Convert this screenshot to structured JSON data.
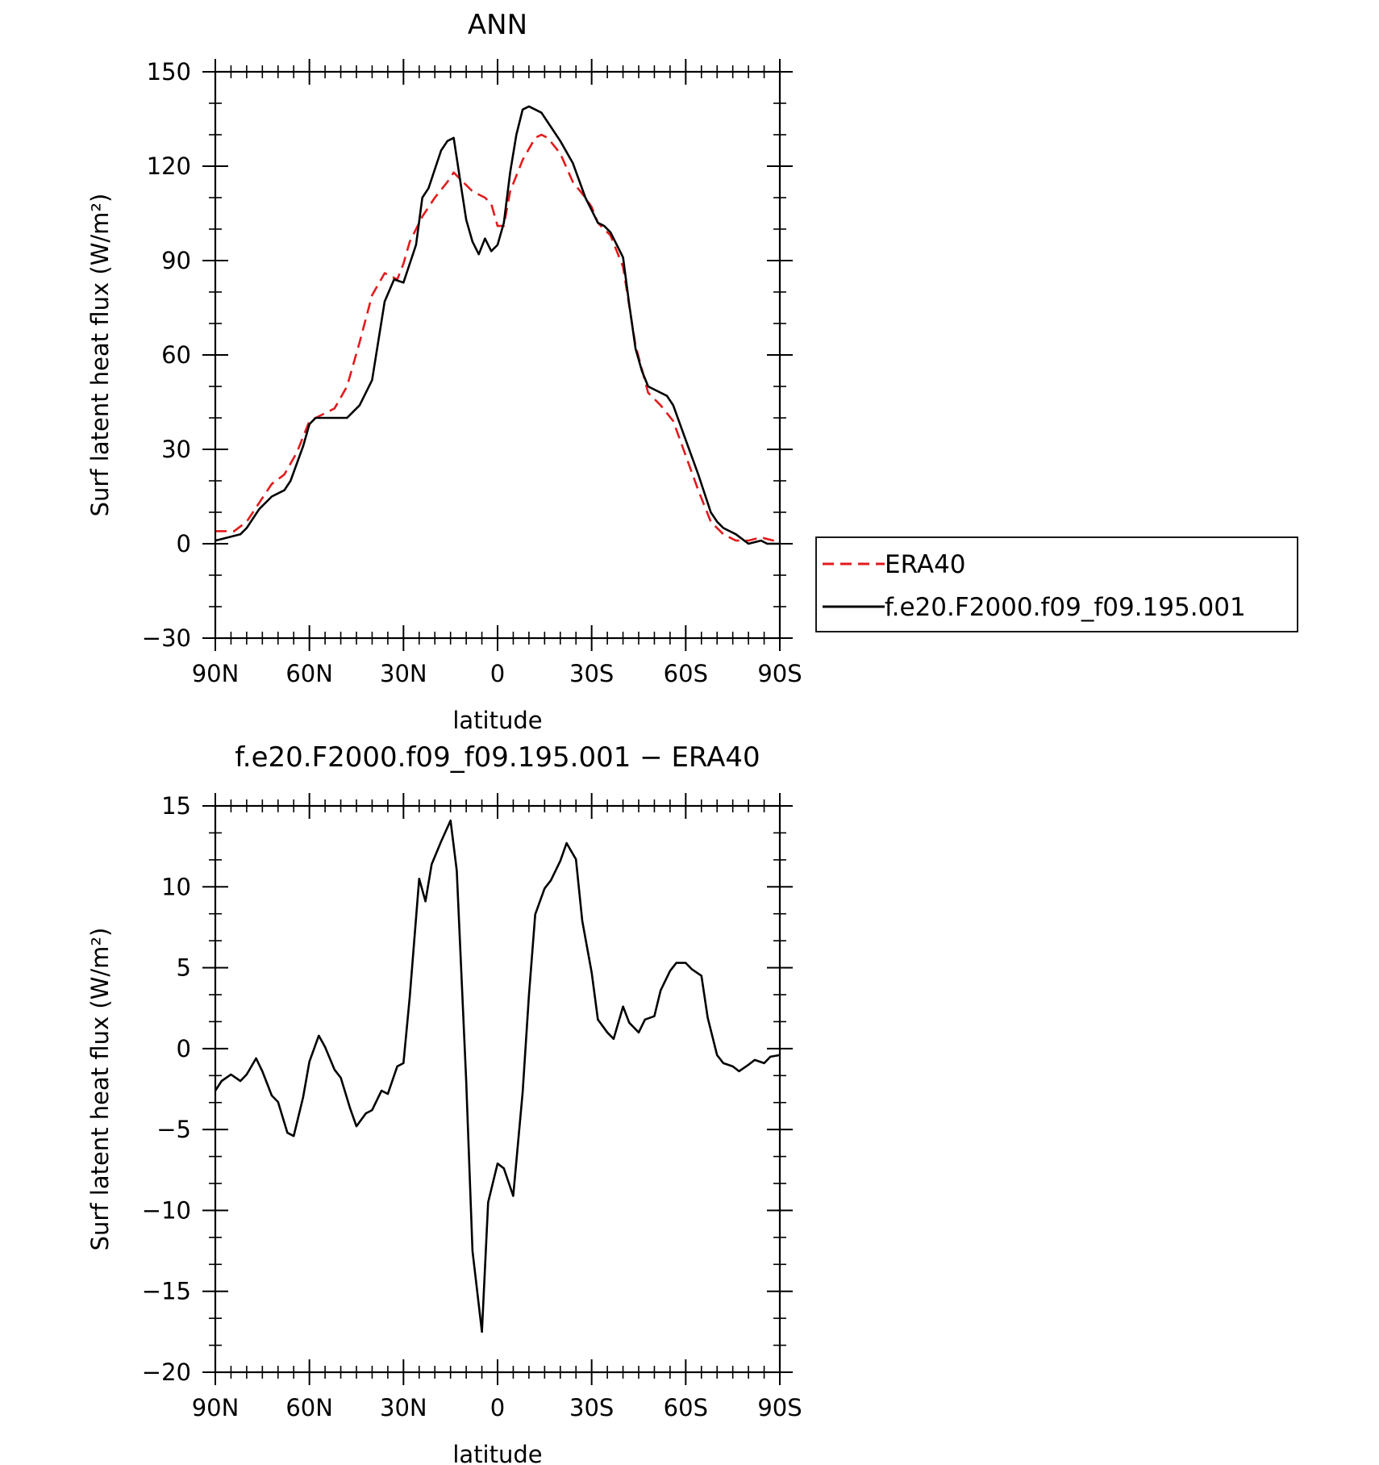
{
  "chart_data": [
    {
      "type": "line",
      "title": "ANN",
      "xlabel": "latitude",
      "ylabel": "Surf latent heat flux (W/m²)",
      "xlim": [
        90,
        -90
      ],
      "ylim": [
        -30,
        150
      ],
      "xticks": [
        90,
        60,
        30,
        0,
        -30,
        -60,
        -90
      ],
      "xtick_labels": [
        "90N",
        "60N",
        "30N",
        "0",
        "30S",
        "60S",
        "90S"
      ],
      "yticks": [
        -30,
        0,
        30,
        60,
        90,
        120,
        150
      ],
      "ytick_labels": [
        "−30",
        "0",
        "30",
        "60",
        "90",
        "120",
        "150"
      ],
      "grid": false,
      "legend": "outside-right",
      "series": [
        {
          "name": "ERA40",
          "color": "#e31a1c",
          "dash": "dashed",
          "x": [
            90,
            84,
            80,
            76,
            72,
            68,
            64,
            60,
            56,
            52,
            48,
            44,
            40,
            36,
            32,
            30,
            28,
            24,
            20,
            16,
            14,
            12,
            8,
            4,
            2,
            0,
            -2,
            -4,
            -8,
            -12,
            -14,
            -16,
            -20,
            -24,
            -28,
            -30,
            -32,
            -36,
            -40,
            -44,
            -48,
            -52,
            -56,
            -60,
            -64,
            -68,
            -72,
            -76,
            -80,
            -84,
            -88,
            -90
          ],
          "values": [
            4,
            4,
            7,
            13,
            19,
            22,
            29,
            39,
            41,
            43,
            50,
            64,
            79,
            86,
            84,
            89,
            96,
            104,
            110,
            115,
            118,
            116,
            112,
            110,
            108,
            101,
            101,
            112,
            122,
            129,
            130,
            129,
            124,
            115,
            110,
            107,
            102,
            98,
            88,
            63,
            48,
            44,
            39,
            28,
            17,
            7,
            3,
            1,
            1,
            2,
            1,
            0
          ]
        },
        {
          "name": "f.e20.F2000.f09_f09.195.001",
          "color": "#000000",
          "dash": "solid",
          "x": [
            90,
            86,
            82,
            80,
            76,
            72,
            70,
            68,
            66,
            62,
            60,
            58,
            54,
            50,
            48,
            46,
            44,
            40,
            36,
            33,
            30,
            28,
            26,
            24,
            22,
            20,
            18,
            16,
            14,
            12,
            10,
            8,
            6,
            4,
            2,
            0,
            -2,
            -4,
            -6,
            -8,
            -10,
            -12,
            -14,
            -16,
            -20,
            -24,
            -28,
            -30,
            -32,
            -34,
            -36,
            -38,
            -40,
            -42,
            -44,
            -46,
            -48,
            -50,
            -54,
            -56,
            -60,
            -64,
            -68,
            -70,
            -72,
            -76,
            -80,
            -84,
            -86,
            -88,
            -90
          ],
          "values": [
            1,
            2,
            3,
            5,
            11,
            15,
            16,
            17,
            20,
            31,
            38,
            40,
            40,
            40,
            40,
            42,
            44,
            52,
            77,
            84,
            83,
            89,
            95,
            110,
            113,
            119,
            125,
            128,
            129,
            116,
            103,
            96,
            92,
            97,
            93,
            95,
            102,
            118,
            130,
            138,
            139,
            138,
            137,
            134,
            128,
            121,
            110,
            106,
            102,
            101,
            99,
            95,
            91,
            76,
            62,
            55,
            50,
            49,
            47,
            44,
            33,
            22,
            10,
            7,
            5,
            3,
            0,
            1,
            0,
            0,
            0
          ]
        }
      ]
    },
    {
      "type": "line",
      "title": "f.e20.F2000.f09_f09.195.001 − ERA40",
      "xlabel": "latitude",
      "ylabel": "Surf latent heat flux (W/m²)",
      "xlim": [
        90,
        -90
      ],
      "ylim": [
        -20,
        15
      ],
      "xticks": [
        90,
        60,
        30,
        0,
        -30,
        -60,
        -90
      ],
      "xtick_labels": [
        "90N",
        "60N",
        "30N",
        "0",
        "30S",
        "60S",
        "90S"
      ],
      "yticks": [
        -20,
        -15,
        -10,
        -5,
        0,
        5,
        10,
        15
      ],
      "ytick_labels": [
        "−20",
        "−15",
        "−10",
        "−5",
        "0",
        "5",
        "10",
        "15"
      ],
      "grid": false,
      "series": [
        {
          "color": "#000000",
          "dash": "solid",
          "x": [
            90,
            88,
            85,
            82,
            80,
            77,
            75,
            72,
            70,
            67,
            65,
            62,
            60,
            57,
            55,
            52,
            50,
            47,
            45,
            42,
            40,
            37,
            35,
            32,
            30,
            28,
            25,
            23,
            21,
            18,
            15,
            13,
            10,
            8,
            5,
            3,
            0,
            -2,
            -5,
            -8,
            -10,
            -12,
            -15,
            -17,
            -20,
            -22,
            -25,
            -27,
            -30,
            -32,
            -35,
            -37,
            -40,
            -42,
            -45,
            -47,
            -50,
            -52,
            -55,
            -57,
            -60,
            -62,
            -65,
            -67,
            -70,
            -72,
            -75,
            -77,
            -80,
            -82,
            -85,
            -87,
            -90
          ],
          "values": [
            -2.6,
            -2.0,
            -1.6,
            -2.0,
            -1.6,
            -0.6,
            -1.4,
            -2.9,
            -3.3,
            -5.2,
            -5.4,
            -3.0,
            -0.8,
            0.8,
            0.1,
            -1.3,
            -1.8,
            -3.7,
            -4.8,
            -4.0,
            -3.8,
            -2.6,
            -2.8,
            -1.1,
            -0.9,
            3.2,
            10.5,
            9.1,
            11.4,
            12.8,
            14.1,
            11.0,
            -2.0,
            -12.5,
            -17.5,
            -9.5,
            -7.1,
            -7.4,
            -9.1,
            -2.7,
            3.3,
            8.3,
            9.9,
            10.4,
            11.6,
            12.7,
            11.7,
            7.9,
            4.7,
            1.8,
            1.0,
            0.6,
            2.6,
            1.6,
            1.0,
            1.8,
            2.0,
            3.6,
            4.8,
            5.3,
            5.3,
            4.9,
            4.5,
            1.9,
            -0.4,
            -0.9,
            -1.1,
            -1.4,
            -1.0,
            -0.7,
            -0.9,
            -0.5,
            -0.4
          ]
        }
      ]
    }
  ]
}
